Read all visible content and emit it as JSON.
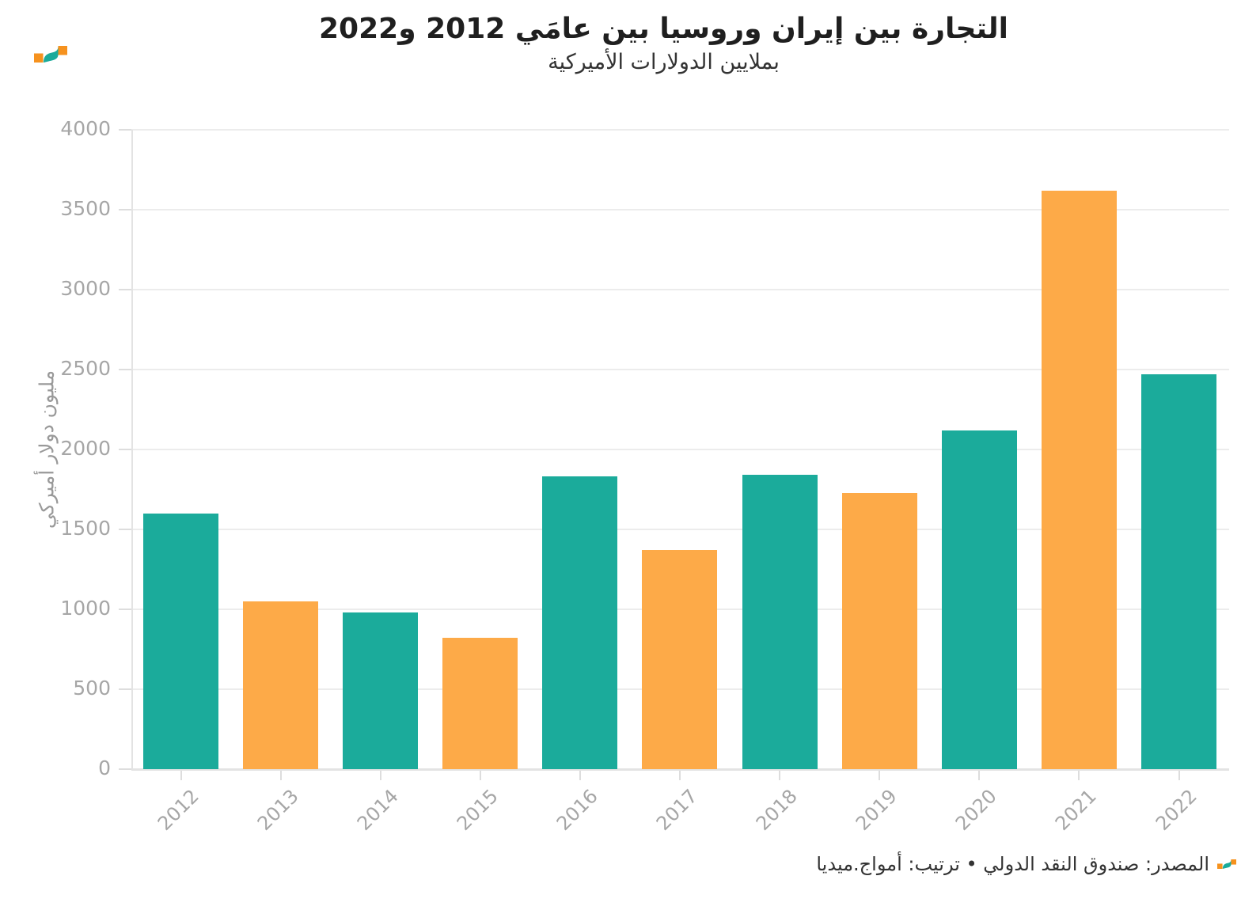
{
  "header": {
    "title": "التجارة بين إيران وروسيا بين عامَي 2012 و2022",
    "subtitle": "بملايين الدولارات الأميركية",
    "logo": "amwaj-media-logo"
  },
  "chart_data": {
    "type": "bar",
    "title": "التجارة بين إيران وروسيا بين عامَي 2012 و2022",
    "subtitle": "بملايين الدولارات الأميركية",
    "categories": [
      "2012",
      "2013",
      "2014",
      "2015",
      "2016",
      "2017",
      "2018",
      "2019",
      "2020",
      "2021",
      "2022"
    ],
    "values": [
      1600,
      1050,
      980,
      820,
      1830,
      1370,
      1840,
      1730,
      2120,
      3620,
      2470
    ],
    "bar_color_keys": [
      "teal",
      "orange",
      "teal",
      "orange",
      "teal",
      "orange",
      "teal",
      "orange",
      "teal",
      "orange",
      "teal"
    ],
    "xlabel": "",
    "ylabel": "مليون دولار أميركي",
    "ylim": [
      0,
      4000
    ],
    "ytick_step": 500,
    "ytick_labels": [
      "0",
      "500",
      "1000",
      "1500",
      "2000",
      "2500",
      "3000",
      "3500",
      "4000"
    ],
    "grid": true,
    "legend": "none",
    "x_label_rotation_deg": -45
  },
  "colors": {
    "teal": "#1bab9b",
    "orange": "#fdaa48",
    "grid": "#ececec",
    "axis": "#e3e3e3",
    "tick": "#dddddd",
    "tick_label": "#a6a6a6",
    "title": "#1f1f1f",
    "text": "#333333"
  },
  "footer": {
    "text": "المصدر: صندوق النقد الدولي • ترتيب: أمواج.ميديا"
  }
}
